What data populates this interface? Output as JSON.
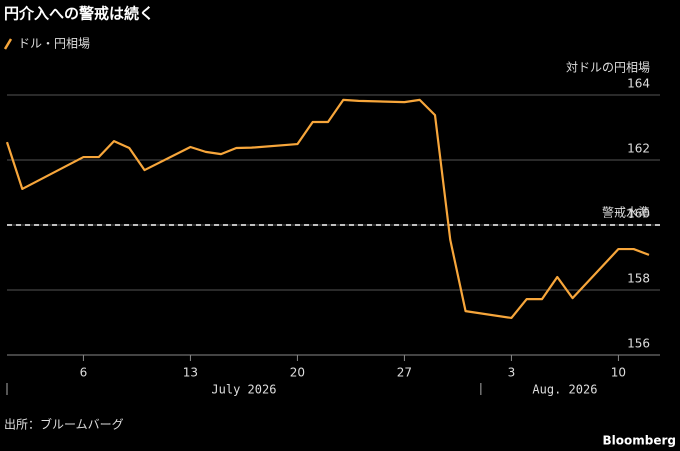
{
  "chart_data": {
    "type": "line",
    "title": "円介入への警戒は続く",
    "y_axis_title": "対ドルの円相場",
    "series": [
      {
        "name": "ドル・円相場",
        "color": "#f7a63b",
        "x": [
          "2026-07-01",
          "2026-07-02",
          "2026-07-06",
          "2026-07-07",
          "2026-07-08",
          "2026-07-09",
          "2026-07-10",
          "2026-07-13",
          "2026-07-14",
          "2026-07-15",
          "2026-07-16",
          "2026-07-17",
          "2026-07-20",
          "2026-07-21",
          "2026-07-22",
          "2026-07-23",
          "2026-07-24",
          "2026-07-27",
          "2026-07-28",
          "2026-07-29",
          "2026-07-30",
          "2026-07-31",
          "2026-08-03",
          "2026-08-04",
          "2026-08-05",
          "2026-08-06",
          "2026-08-07",
          "2026-08-10",
          "2026-08-11",
          "2026-08-12"
        ],
        "values": [
          162.55,
          161.11,
          162.09,
          162.09,
          162.58,
          162.37,
          161.69,
          162.4,
          162.25,
          162.18,
          162.37,
          162.38,
          162.49,
          163.17,
          163.17,
          163.85,
          163.82,
          163.78,
          163.85,
          163.38,
          159.54,
          157.35,
          157.14,
          157.72,
          157.72,
          158.4,
          157.75,
          159.26,
          159.26,
          159.08
        ]
      }
    ],
    "reference_line": {
      "value": 160,
      "label": "警戒水準"
    },
    "xlim": [
      "2026-07-01",
      "2026-08-12"
    ],
    "xticks": [
      {
        "value": "2026-07-06",
        "label": "6"
      },
      {
        "value": "2026-07-13",
        "label": "13"
      },
      {
        "value": "2026-07-20",
        "label": "20"
      },
      {
        "value": "2026-07-27",
        "label": "27"
      },
      {
        "value": "2026-08-03",
        "label": "3"
      },
      {
        "value": "2026-08-10",
        "label": "10"
      }
    ],
    "month_labels": [
      {
        "start": "2026-07-01",
        "label": "July 2026"
      },
      {
        "start": "2026-08-01",
        "label": "Aug. 2026"
      }
    ],
    "ylim": [
      156,
      164
    ],
    "yticks": [
      156,
      158,
      160,
      162,
      164
    ],
    "grid": true,
    "source": "出所：ブルームバーグ",
    "brand": "Bloomberg"
  }
}
